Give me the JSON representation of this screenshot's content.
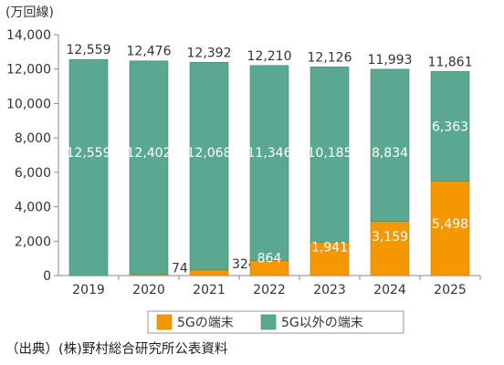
{
  "chart_data": {
    "type": "bar",
    "stacked": true,
    "unit_label": "(万回線)",
    "categories": [
      "2019",
      "2020",
      "2021",
      "2022",
      "2023",
      "2024",
      "2025"
    ],
    "series": [
      {
        "name": "5Gの端末",
        "color": "#f39800",
        "values": [
          0,
          74,
          324,
          864,
          1941,
          3159,
          5498
        ],
        "labels": [
          "",
          "74",
          "324",
          "864",
          "1,941",
          "3,159",
          "5,498"
        ]
      },
      {
        "name": "5G以外の端末",
        "color": "#5aa891",
        "values": [
          12559,
          12402,
          12068,
          11346,
          10185,
          8834,
          6363
        ],
        "labels": [
          "12,559",
          "12,402",
          "12,068",
          "11,346",
          "10,185",
          "8,834",
          "6,363"
        ]
      }
    ],
    "totals": [
      "12,559",
      "12,476",
      "12,392",
      "12,210",
      "12,126",
      "11,993",
      "11,861"
    ],
    "total_values": [
      12559,
      12476,
      12392,
      12210,
      12126,
      11993,
      11861
    ],
    "ylim": [
      0,
      14000
    ],
    "yticks": [
      0,
      2000,
      4000,
      6000,
      8000,
      10000,
      12000,
      14000
    ],
    "ytick_labels": [
      "0",
      "2,000",
      "4,000",
      "6,000",
      "8,000",
      "10,000",
      "12,000",
      "14,000"
    ],
    "grid": false,
    "legend_position": "bottom",
    "legend": [
      "5Gの端末",
      "5G以外の端末"
    ]
  },
  "source_note": "（出典）(株)野村総合研究所公表資料"
}
